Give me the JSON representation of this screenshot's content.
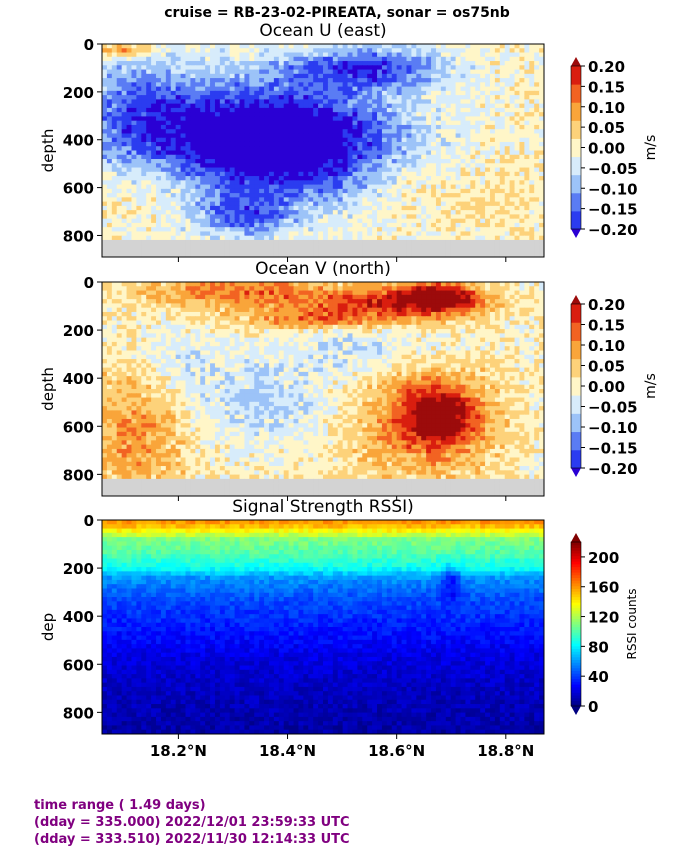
{
  "suptitle": "cruise = RB-23-02-PIREATA,  sonar = os75nb",
  "footer": {
    "line1": "time range ( 1.49 days)",
    "line2": "(dday = 335.000) 2022/12/01 23:59:33 UTC",
    "line3": "(dday = 333.510) 2022/11/30 12:14:33 UTC"
  },
  "chart_data": [
    {
      "type": "heatmap",
      "title": "Ocean U (east)",
      "ylabel": "depth",
      "xlabel": "",
      "xlim": [
        18.06,
        18.87
      ],
      "ylim": [
        890,
        0
      ],
      "y_ticks": [
        0,
        200,
        400,
        600,
        800
      ],
      "y_tick_labels": [
        "0",
        "200",
        "400",
        "600",
        "800"
      ],
      "x_ticks": [
        18.2,
        18.4,
        18.6,
        18.8
      ],
      "x_tick_labels": [
        "",
        "",
        "",
        ""
      ],
      "colorbar": {
        "label": "m/s",
        "vmin": -0.2,
        "vmax": 0.2,
        "ticks": [
          0.2,
          0.15,
          0.1,
          0.05,
          0.0,
          -0.05,
          -0.1,
          -0.15,
          -0.2
        ],
        "tick_labels": [
          "0.20",
          "0.15",
          "0.10",
          "0.05",
          "0.00",
          "−0.05",
          "−0.10",
          "−0.15",
          "−0.20"
        ],
        "colors": [
          "#2a00d4",
          "#2b3cf0",
          "#5a7cf4",
          "#9cc3f8",
          "#d7ecfb",
          "#fff6c8",
          "#fdd27a",
          "#f9a53a",
          "#f26322",
          "#d91e0f",
          "#9c0b0b"
        ]
      },
      "data_depth_max": 810,
      "nodata_color": "#d3d3d3",
      "features": [
        {
          "x": 18.4,
          "depth": 420,
          "value": -0.2,
          "sx": 0.14,
          "sy": 150
        },
        {
          "x": 18.55,
          "depth": 100,
          "value": -0.17,
          "sx": 0.1,
          "sy": 60
        },
        {
          "x": 18.32,
          "depth": 380,
          "value": -0.14,
          "sx": 0.18,
          "sy": 180
        },
        {
          "x": 18.12,
          "depth": 260,
          "value": -0.1,
          "sx": 0.08,
          "sy": 160
        },
        {
          "x": 18.15,
          "depth": 600,
          "value": 0.04,
          "sx": 0.07,
          "sy": 90
        },
        {
          "x": 18.62,
          "depth": 560,
          "value": 0.04,
          "sx": 0.05,
          "sy": 80
        },
        {
          "x": 18.78,
          "depth": 640,
          "value": 0.03,
          "sx": 0.06,
          "sy": 100
        },
        {
          "x": 18.1,
          "depth": 30,
          "value": 0.12,
          "sx": 0.04,
          "sy": 20
        },
        {
          "x": 18.32,
          "depth": 720,
          "value": -0.14,
          "sx": 0.06,
          "sy": 60
        }
      ]
    },
    {
      "type": "heatmap",
      "title": "Ocean V (north)",
      "ylabel": "depth",
      "xlabel": "",
      "xlim": [
        18.06,
        18.87
      ],
      "ylim": [
        890,
        0
      ],
      "y_ticks": [
        0,
        200,
        400,
        600,
        800
      ],
      "y_tick_labels": [
        "0",
        "200",
        "400",
        "600",
        "800"
      ],
      "x_ticks": [
        18.2,
        18.4,
        18.6,
        18.8
      ],
      "x_tick_labels": [
        "",
        "",
        "",
        ""
      ],
      "colorbar": {
        "label": "m/s",
        "vmin": -0.2,
        "vmax": 0.2,
        "ticks": [
          0.2,
          0.15,
          0.1,
          0.05,
          0.0,
          -0.05,
          -0.1,
          -0.15,
          -0.2
        ],
        "tick_labels": [
          "0.20",
          "0.15",
          "0.10",
          "0.05",
          "0.00",
          "−0.05",
          "−0.10",
          "−0.15",
          "−0.20"
        ],
        "colors": [
          "#2a00d4",
          "#2b3cf0",
          "#5a7cf4",
          "#9cc3f8",
          "#d7ecfb",
          "#fff6c8",
          "#fdd27a",
          "#f9a53a",
          "#f26322",
          "#d91e0f",
          "#9c0b0b"
        ]
      },
      "data_depth_max": 810,
      "nodata_color": "#d3d3d3",
      "features": [
        {
          "x": 18.68,
          "depth": 60,
          "value": 0.21,
          "sx": 0.05,
          "sy": 40
        },
        {
          "x": 18.58,
          "depth": 90,
          "value": 0.16,
          "sx": 0.12,
          "sy": 50
        },
        {
          "x": 18.3,
          "depth": 40,
          "value": 0.12,
          "sx": 0.12,
          "sy": 50
        },
        {
          "x": 18.45,
          "depth": 160,
          "value": 0.1,
          "sx": 0.1,
          "sy": 30
        },
        {
          "x": 18.68,
          "depth": 560,
          "value": 0.19,
          "sx": 0.05,
          "sy": 90
        },
        {
          "x": 18.64,
          "depth": 560,
          "value": 0.1,
          "sx": 0.1,
          "sy": 200
        },
        {
          "x": 18.12,
          "depth": 620,
          "value": 0.1,
          "sx": 0.07,
          "sy": 200
        },
        {
          "x": 18.36,
          "depth": 500,
          "value": -0.07,
          "sx": 0.1,
          "sy": 120
        },
        {
          "x": 18.55,
          "depth": 280,
          "value": -0.07,
          "sx": 0.1,
          "sy": 80
        },
        {
          "x": 18.2,
          "depth": 330,
          "value": -0.05,
          "sx": 0.06,
          "sy": 100
        }
      ]
    },
    {
      "type": "heatmap",
      "title": "Signal Strength RSSI)",
      "ylabel": "dep",
      "xlabel": "",
      "xlim": [
        18.06,
        18.87
      ],
      "ylim": [
        890,
        0
      ],
      "y_ticks": [
        0,
        200,
        400,
        600,
        800
      ],
      "y_tick_labels": [
        "0",
        "200",
        "400",
        "600",
        "800"
      ],
      "x_ticks": [
        18.2,
        18.4,
        18.6,
        18.8
      ],
      "x_tick_labels": [
        "18.2°N",
        "18.4°N",
        "18.6°N",
        "18.8°N"
      ],
      "colorbar": {
        "label": "RSSI counts",
        "vmin": 0,
        "vmax": 220,
        "ticks": [
          200,
          160,
          120,
          80,
          40,
          0
        ],
        "tick_labels": [
          "200",
          "160",
          "120",
          "80",
          "40",
          "0"
        ],
        "colormap": "jet"
      },
      "profile": [
        {
          "depth": 0,
          "value": 165
        },
        {
          "depth": 30,
          "value": 150
        },
        {
          "depth": 80,
          "value": 110
        },
        {
          "depth": 140,
          "value": 100
        },
        {
          "depth": 200,
          "value": 85
        },
        {
          "depth": 240,
          "value": 60
        },
        {
          "depth": 320,
          "value": 45
        },
        {
          "depth": 420,
          "value": 35
        },
        {
          "depth": 480,
          "value": 30
        },
        {
          "depth": 560,
          "value": 22
        },
        {
          "depth": 700,
          "value": 14
        },
        {
          "depth": 890,
          "value": 8
        }
      ],
      "anomaly": {
        "x": 18.7,
        "depth": 260,
        "value": 25,
        "sx": 0.012,
        "sy": 60
      }
    }
  ]
}
